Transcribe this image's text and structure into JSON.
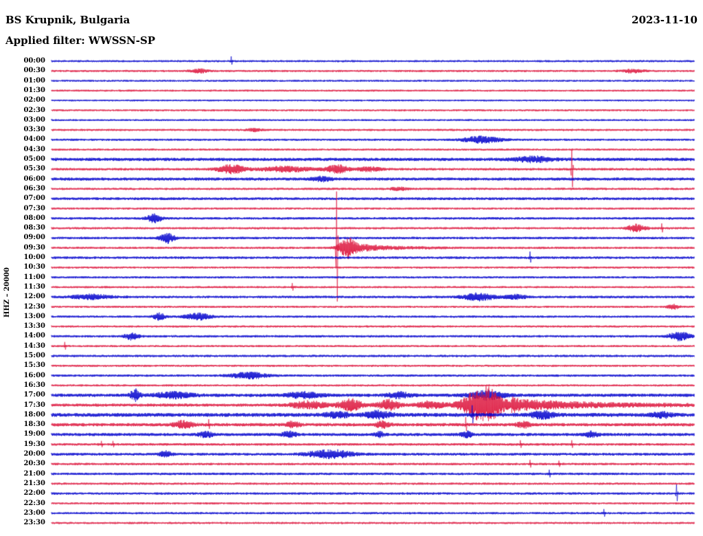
{
  "header": {
    "station": "BS Krupnik, Bulgaria",
    "date": "2023-11-10",
    "filter": "Applied filter: WWSSN-SP"
  },
  "chart_data": {
    "type": "line",
    "subtype": "helicorder-seismogram",
    "title": "BS Krupnik, Bulgaria",
    "date": "2023-11-10",
    "filter": "WWSSN-SP",
    "y_axis_label": "HHZ – 20000",
    "channel": "HHZ",
    "scale": 20000,
    "row_duration_minutes": 30,
    "amplitude_units": "px",
    "legend_position": "none",
    "grid": false,
    "colors": {
      "blue": "#0000cd",
      "red": "#dc143c"
    },
    "rows": [
      {
        "time": "00:00",
        "color": "blue",
        "noise": 1.5,
        "events": [
          {
            "type": "spike",
            "at": 0.28,
            "amp": 7,
            "down": 5
          }
        ]
      },
      {
        "time": "00:30",
        "color": "red",
        "noise": 1.5,
        "events": [
          {
            "type": "burst",
            "from": 0.21,
            "to": 0.25,
            "amp": 2.5
          },
          {
            "type": "burst",
            "from": 0.88,
            "to": 0.93,
            "amp": 2.2
          }
        ]
      },
      {
        "time": "01:00",
        "color": "blue",
        "noise": 1.4,
        "events": []
      },
      {
        "time": "01:30",
        "color": "red",
        "noise": 1.4,
        "events": []
      },
      {
        "time": "02:00",
        "color": "blue",
        "noise": 1.3,
        "events": []
      },
      {
        "time": "02:30",
        "color": "red",
        "noise": 1.4,
        "events": []
      },
      {
        "time": "03:00",
        "color": "blue",
        "noise": 1.4,
        "events": []
      },
      {
        "time": "03:30",
        "color": "red",
        "noise": 1.5,
        "events": [
          {
            "type": "burst",
            "from": 0.3,
            "to": 0.33,
            "amp": 2
          }
        ]
      },
      {
        "time": "04:00",
        "color": "blue",
        "noise": 1.6,
        "events": [
          {
            "type": "burst",
            "from": 0.63,
            "to": 0.71,
            "amp": 4.5
          }
        ]
      },
      {
        "time": "04:30",
        "color": "red",
        "noise": 1.5,
        "events": []
      },
      {
        "time": "05:00",
        "color": "blue",
        "noise": 2.4,
        "events": [
          {
            "type": "burst",
            "from": 0.71,
            "to": 0.79,
            "amp": 3.5
          }
        ]
      },
      {
        "time": "05:30",
        "color": "red",
        "noise": 1.8,
        "events": [
          {
            "type": "burst",
            "from": 0.25,
            "to": 0.31,
            "amp": 6
          },
          {
            "type": "burst",
            "from": 0.31,
            "to": 0.42,
            "amp": 3.5
          },
          {
            "type": "burst",
            "from": 0.42,
            "to": 0.47,
            "amp": 5.5
          },
          {
            "type": "burst",
            "from": 0.47,
            "to": 0.52,
            "amp": 3
          },
          {
            "type": "spike",
            "at": 0.81,
            "amp": 28,
            "down": 26
          }
        ]
      },
      {
        "time": "06:00",
        "color": "blue",
        "noise": 2.2,
        "events": [
          {
            "type": "burst",
            "from": 0.4,
            "to": 0.44,
            "amp": 3
          }
        ]
      },
      {
        "time": "06:30",
        "color": "red",
        "noise": 1.6,
        "events": [
          {
            "type": "burst",
            "from": 0.52,
            "to": 0.56,
            "amp": 2
          }
        ]
      },
      {
        "time": "07:00",
        "color": "blue",
        "noise": 2.0,
        "events": []
      },
      {
        "time": "07:30",
        "color": "red",
        "noise": 1.5,
        "events": []
      },
      {
        "time": "08:00",
        "color": "blue",
        "noise": 1.8,
        "events": [
          {
            "type": "burst",
            "from": 0.145,
            "to": 0.175,
            "amp": 6
          }
        ]
      },
      {
        "time": "08:30",
        "color": "red",
        "noise": 1.6,
        "events": [
          {
            "type": "burst",
            "from": 0.89,
            "to": 0.93,
            "amp": 5
          },
          {
            "type": "spike",
            "at": 0.95,
            "amp": 7,
            "down": 6
          }
        ]
      },
      {
        "time": "09:00",
        "color": "blue",
        "noise": 1.8,
        "events": [
          {
            "type": "burst",
            "from": 0.165,
            "to": 0.195,
            "amp": 7
          }
        ]
      },
      {
        "time": "09:30",
        "color": "red",
        "noise": 1.6,
        "events": [
          {
            "type": "spike",
            "at": 0.444,
            "amp": 82,
            "down": 78
          },
          {
            "type": "burst",
            "from": 0.44,
            "to": 0.475,
            "amp": 11
          },
          {
            "type": "decay",
            "from": 0.46,
            "amp": 7,
            "tau": 0.05
          }
        ]
      },
      {
        "time": "10:00",
        "color": "blue",
        "noise": 1.8,
        "events": [
          {
            "type": "spike",
            "at": 0.745,
            "amp": 9,
            "down": 7
          }
        ]
      },
      {
        "time": "10:30",
        "color": "red",
        "noise": 1.5,
        "events": []
      },
      {
        "time": "11:00",
        "color": "blue",
        "noise": 1.6,
        "events": []
      },
      {
        "time": "11:30",
        "color": "red",
        "noise": 1.5,
        "events": [
          {
            "type": "spike",
            "at": 0.375,
            "amp": 6,
            "down": 5
          }
        ]
      },
      {
        "time": "12:00",
        "color": "blue",
        "noise": 1.8,
        "events": [
          {
            "type": "burst",
            "from": 0.02,
            "to": 0.105,
            "amp": 3.2
          },
          {
            "type": "burst",
            "from": 0.63,
            "to": 0.7,
            "amp": 5
          },
          {
            "type": "burst",
            "from": 0.7,
            "to": 0.745,
            "amp": 3
          }
        ]
      },
      {
        "time": "12:30",
        "color": "red",
        "noise": 1.5,
        "events": [
          {
            "type": "burst",
            "from": 0.955,
            "to": 0.98,
            "amp": 3
          }
        ]
      },
      {
        "time": "13:00",
        "color": "blue",
        "noise": 1.6,
        "events": [
          {
            "type": "burst",
            "from": 0.155,
            "to": 0.18,
            "amp": 5
          },
          {
            "type": "burst",
            "from": 0.2,
            "to": 0.255,
            "amp": 4.5
          }
        ]
      },
      {
        "time": "13:30",
        "color": "red",
        "noise": 1.5,
        "events": []
      },
      {
        "time": "14:00",
        "color": "blue",
        "noise": 1.7,
        "events": [
          {
            "type": "burst",
            "from": 0.11,
            "to": 0.14,
            "amp": 5
          },
          {
            "type": "burst",
            "from": 0.955,
            "to": 1.0,
            "amp": 6
          }
        ]
      },
      {
        "time": "14:30",
        "color": "red",
        "noise": 1.5,
        "events": [
          {
            "type": "spike",
            "at": 0.021,
            "amp": 6,
            "down": 5
          }
        ]
      },
      {
        "time": "15:00",
        "color": "blue",
        "noise": 1.7,
        "events": []
      },
      {
        "time": "15:30",
        "color": "red",
        "noise": 1.5,
        "events": []
      },
      {
        "time": "16:00",
        "color": "blue",
        "noise": 1.7,
        "events": [
          {
            "type": "burst",
            "from": 0.27,
            "to": 0.345,
            "amp": 4.5
          }
        ]
      },
      {
        "time": "16:30",
        "color": "red",
        "noise": 1.5,
        "events": []
      },
      {
        "time": "17:00",
        "color": "blue",
        "noise": 2.4,
        "events": [
          {
            "type": "burst",
            "from": 0.12,
            "to": 0.14,
            "amp": 8
          },
          {
            "type": "burst",
            "from": 0.15,
            "to": 0.23,
            "amp": 4
          },
          {
            "type": "burst",
            "from": 0.355,
            "to": 0.43,
            "amp": 4
          },
          {
            "type": "burst",
            "from": 0.515,
            "to": 0.565,
            "amp": 4
          },
          {
            "type": "burst",
            "from": 0.64,
            "to": 0.715,
            "amp": 6
          }
        ]
      },
      {
        "time": "17:30",
        "color": "red",
        "noise": 2.2,
        "events": [
          {
            "type": "burst",
            "from": 0.36,
            "to": 0.44,
            "amp": 5
          },
          {
            "type": "burst",
            "from": 0.44,
            "to": 0.49,
            "amp": 8
          },
          {
            "type": "burst",
            "from": 0.5,
            "to": 0.55,
            "amp": 7
          },
          {
            "type": "burst",
            "from": 0.56,
            "to": 0.62,
            "amp": 5
          },
          {
            "type": "burst",
            "from": 0.63,
            "to": 0.715,
            "amp": 26
          },
          {
            "type": "decay",
            "from": 0.715,
            "amp": 8,
            "tau": 0.12
          }
        ]
      },
      {
        "time": "18:00",
        "color": "blue",
        "noise": 2.8,
        "events": [
          {
            "type": "burst",
            "from": 0.42,
            "to": 0.47,
            "amp": 4
          },
          {
            "type": "burst",
            "from": 0.48,
            "to": 0.535,
            "amp": 5
          },
          {
            "type": "spike",
            "at": 0.655,
            "amp": 14,
            "down": 12
          },
          {
            "type": "burst",
            "from": 0.74,
            "to": 0.79,
            "amp": 5
          },
          {
            "type": "burst",
            "from": 0.93,
            "to": 0.97,
            "amp": 4
          }
        ]
      },
      {
        "time": "18:30",
        "color": "red",
        "noise": 2.4,
        "events": [
          {
            "type": "burst",
            "from": 0.185,
            "to": 0.225,
            "amp": 5
          },
          {
            "type": "spike",
            "at": 0.245,
            "amp": 8,
            "down": 6
          },
          {
            "type": "burst",
            "from": 0.36,
            "to": 0.39,
            "amp": 4
          },
          {
            "type": "burst",
            "from": 0.5,
            "to": 0.53,
            "amp": 4
          },
          {
            "type": "spike",
            "at": 0.645,
            "amp": 11,
            "down": 9
          },
          {
            "type": "burst",
            "from": 0.72,
            "to": 0.75,
            "amp": 4
          }
        ]
      },
      {
        "time": "19:00",
        "color": "blue",
        "noise": 2.2,
        "events": [
          {
            "type": "burst",
            "from": 0.225,
            "to": 0.255,
            "amp": 4
          },
          {
            "type": "burst",
            "from": 0.355,
            "to": 0.385,
            "amp": 4
          },
          {
            "type": "burst",
            "from": 0.5,
            "to": 0.52,
            "amp": 3.5
          },
          {
            "type": "burst",
            "from": 0.63,
            "to": 0.66,
            "amp": 4
          },
          {
            "type": "burst",
            "from": 0.825,
            "to": 0.855,
            "amp": 4
          }
        ]
      },
      {
        "time": "19:30",
        "color": "red",
        "noise": 1.8,
        "events": [
          {
            "type": "spike",
            "at": 0.078,
            "amp": 5,
            "down": 4
          },
          {
            "type": "spike",
            "at": 0.096,
            "amp": 5,
            "down": 4
          },
          {
            "type": "spike",
            "at": 0.73,
            "amp": 6,
            "down": 5
          },
          {
            "type": "spike",
            "at": 0.81,
            "amp": 6,
            "down": 5
          }
        ]
      },
      {
        "time": "20:00",
        "color": "blue",
        "noise": 2.0,
        "events": [
          {
            "type": "burst",
            "from": 0.165,
            "to": 0.19,
            "amp": 4
          },
          {
            "type": "burst",
            "from": 0.385,
            "to": 0.48,
            "amp": 6
          }
        ]
      },
      {
        "time": "20:30",
        "color": "red",
        "noise": 1.7,
        "events": [
          {
            "type": "spike",
            "at": 0.745,
            "amp": 6,
            "down": 5
          },
          {
            "type": "spike",
            "at": 0.79,
            "amp": 5,
            "down": 4
          }
        ]
      },
      {
        "time": "21:00",
        "color": "blue",
        "noise": 1.8,
        "events": [
          {
            "type": "spike",
            "at": 0.775,
            "amp": 6,
            "down": 5
          }
        ]
      },
      {
        "time": "21:30",
        "color": "red",
        "noise": 1.6,
        "events": []
      },
      {
        "time": "22:00",
        "color": "blue",
        "noise": 1.7,
        "events": [
          {
            "type": "spike",
            "at": 0.973,
            "amp": 13,
            "down": 11
          }
        ]
      },
      {
        "time": "22:30",
        "color": "red",
        "noise": 1.5,
        "events": []
      },
      {
        "time": "23:00",
        "color": "blue",
        "noise": 1.6,
        "events": [
          {
            "type": "spike",
            "at": 0.86,
            "amp": 6,
            "down": 5
          }
        ]
      },
      {
        "time": "23:30",
        "color": "red",
        "noise": 1.5,
        "events": []
      }
    ]
  }
}
